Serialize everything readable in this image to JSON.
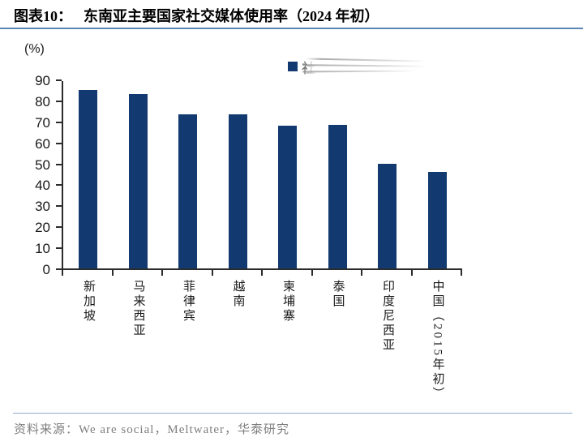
{
  "header": {
    "figure_label": "图表10：",
    "title": "东南亚主要国家社交媒体使用率（2024 年初）"
  },
  "chart_data": {
    "type": "bar",
    "title": "东南亚主要国家社交媒体使用率（2024 年初）",
    "unit_label": "(%)",
    "categories": [
      "新加坡",
      "马来西亚",
      "菲律宾",
      "越南",
      "柬埔寨",
      "泰国",
      "印度尼西亚",
      "中国（2015年初）"
    ],
    "values": [
      85,
      83,
      73.4,
      73.3,
      68,
      68.3,
      49.9,
      46
    ],
    "ylim": [
      0,
      90
    ],
    "ytick_step": 10,
    "grid": false,
    "legend_position": "top-center",
    "legend_visible_text": "社",
    "legend_smudged": true,
    "bar_color": "#123a70",
    "accent_line_color": "#5b87b5"
  },
  "footer": {
    "source": "资料来源：We are social，Meltwater，华泰研究"
  }
}
